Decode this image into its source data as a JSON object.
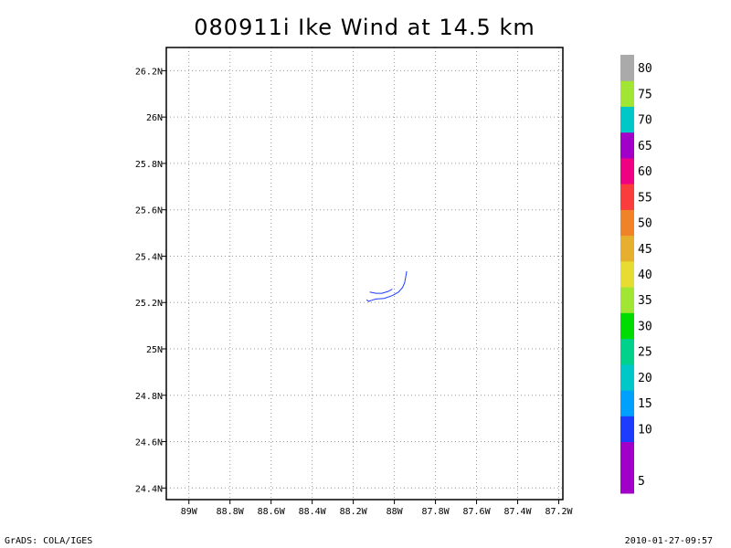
{
  "chart_data": {
    "type": "line",
    "title": "080911i Ike Wind at 14.5 km",
    "xlabel": "",
    "ylabel": "",
    "x_range": [
      -89.11,
      -87.18
    ],
    "y_range": [
      24.35,
      26.3
    ],
    "x_ticks": [
      {
        "value": -89.0,
        "label": "89W"
      },
      {
        "value": -88.8,
        "label": "88.8W"
      },
      {
        "value": -88.6,
        "label": "88.6W"
      },
      {
        "value": -88.4,
        "label": "88.4W"
      },
      {
        "value": -88.2,
        "label": "88.2W"
      },
      {
        "value": -88.0,
        "label": "88W"
      },
      {
        "value": -87.8,
        "label": "87.8W"
      },
      {
        "value": -87.6,
        "label": "87.6W"
      },
      {
        "value": -87.4,
        "label": "87.4W"
      },
      {
        "value": -87.2,
        "label": "87.2W"
      }
    ],
    "y_ticks": [
      {
        "value": 24.4,
        "label": "24.4N"
      },
      {
        "value": 24.6,
        "label": "24.6N"
      },
      {
        "value": 24.8,
        "label": "24.8N"
      },
      {
        "value": 25.0,
        "label": "25N"
      },
      {
        "value": 25.2,
        "label": "25.2N"
      },
      {
        "value": 25.4,
        "label": "25.4N"
      },
      {
        "value": 25.6,
        "label": "25.6N"
      },
      {
        "value": 25.8,
        "label": "25.8N"
      },
      {
        "value": 26.0,
        "label": "26N"
      },
      {
        "value": 26.2,
        "label": "26.2N"
      }
    ],
    "grid": true,
    "series": [
      {
        "color": "#1e3cff",
        "points": [
          [
            -88.11,
            25.21
          ],
          [
            -88.09,
            25.215
          ],
          [
            -88.05,
            25.218
          ],
          [
            -88.01,
            25.23
          ],
          [
            -87.98,
            25.245
          ],
          [
            -87.96,
            25.265
          ],
          [
            -87.95,
            25.285
          ],
          [
            -87.945,
            25.31
          ],
          [
            -87.94,
            25.335
          ]
        ]
      },
      {
        "color": "#1e3cff",
        "points": [
          [
            -88.12,
            25.245
          ],
          [
            -88.09,
            25.24
          ],
          [
            -88.06,
            25.24
          ],
          [
            -88.03,
            25.248
          ],
          [
            -88.01,
            25.258
          ]
        ]
      },
      {
        "color": "#1e3cff",
        "points": [
          [
            -88.11,
            25.21
          ],
          [
            -88.125,
            25.205
          ],
          [
            -88.135,
            25.212
          ]
        ]
      }
    ],
    "colorbar": [
      {
        "color": "#a000c8",
        "label": "5"
      },
      {
        "color": "#a000c8",
        "label": ""
      },
      {
        "color": "#1e3cff",
        "label": "10"
      },
      {
        "color": "#00a0ff",
        "label": "15"
      },
      {
        "color": "#00c8c8",
        "label": "20"
      },
      {
        "color": "#00d28c",
        "label": "25"
      },
      {
        "color": "#00dc00",
        "label": "30"
      },
      {
        "color": "#a0e632",
        "label": "35"
      },
      {
        "color": "#e6dc32",
        "label": "40"
      },
      {
        "color": "#e6af2d",
        "label": "45"
      },
      {
        "color": "#f08228",
        "label": "50"
      },
      {
        "color": "#fa3c3c",
        "label": "55"
      },
      {
        "color": "#f00082",
        "label": "60"
      },
      {
        "color": "#a000c8",
        "label": "65"
      },
      {
        "color": "#00c8c8",
        "label": "70"
      },
      {
        "color": "#a0e632",
        "label": "75"
      },
      {
        "color": "#aaaaaa",
        "label": "80"
      }
    ]
  },
  "footer": {
    "left": "GrADS: COLA/IGES",
    "right": "2010-01-27-09:57"
  }
}
